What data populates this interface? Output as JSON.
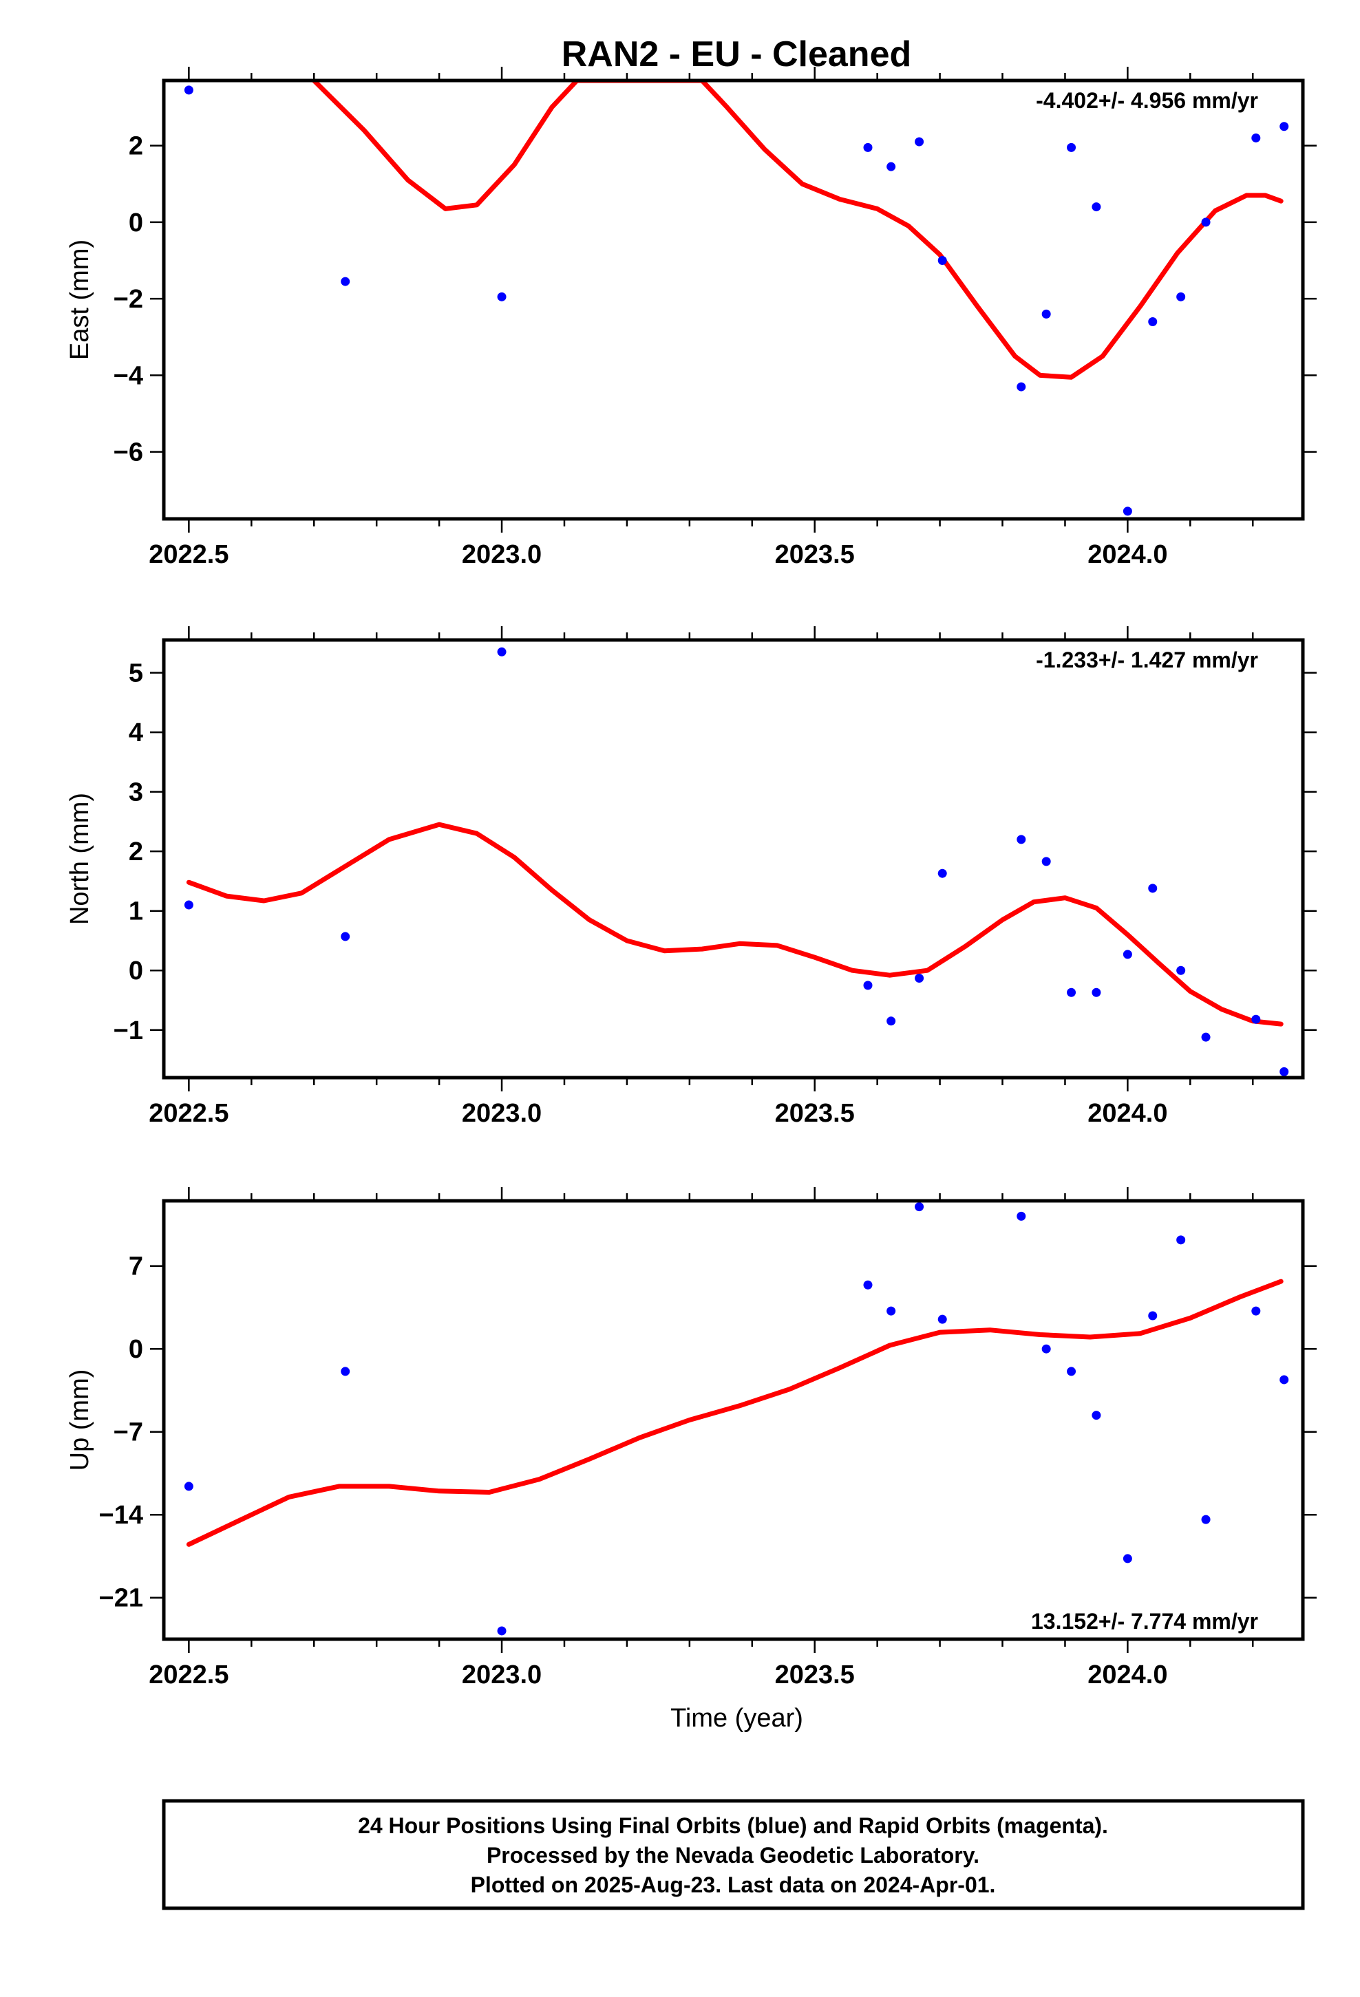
{
  "figure": {
    "title": "RAN2  - EU - Cleaned",
    "footer_lines": [
      "24 Hour Positions Using Final Orbits (blue) and Rapid Orbits (magenta).",
      "Processed by the Nevada Geodetic Laboratory.",
      "Plotted on 2025-Aug-23. Last data on 2024-Apr-01."
    ],
    "colors": {
      "final_orbit_points": "#0000ff",
      "fit_line": "#ff0000",
      "frame": "#000000",
      "background": "#ffffff"
    }
  },
  "chart_data": [
    {
      "type": "scatter",
      "panel": "east",
      "title": "",
      "xlabel": "",
      "ylabel": "East (mm)",
      "rate_label": "-4.402+/- 4.956 mm/yr",
      "xlim": [
        2022.46,
        2024.28
      ],
      "ylim": [
        -7.75,
        3.7
      ],
      "x_ticks": [
        2022.5,
        2023.0,
        2023.5,
        2024.0
      ],
      "x_tick_labels": [
        "2022.5",
        "2023.0",
        "2023.5",
        "2024.0"
      ],
      "y_ticks": [
        2,
        0,
        -2,
        -4,
        -6
      ],
      "y_tick_labels": [
        "2",
        "0",
        "−2",
        "−4",
        "−6"
      ],
      "series": [
        {
          "kind": "points",
          "color": "#0000ff",
          "x": [
            2022.5,
            2022.75,
            2023.0,
            2023.585,
            2023.622,
            2023.667,
            2023.704,
            2023.83,
            2023.87,
            2023.91,
            2023.95,
            2024.0,
            2024.04,
            2024.085,
            2024.125,
            2024.205,
            2024.25
          ],
          "y": [
            3.45,
            -1.55,
            -1.95,
            1.95,
            1.45,
            2.1,
            -1.0,
            -4.3,
            -2.4,
            1.95,
            0.4,
            -7.55,
            -2.6,
            -1.95,
            0.0,
            2.2,
            2.5
          ]
        },
        {
          "kind": "fit",
          "color": "#ff0000",
          "x": [
            2022.7,
            2022.78,
            2022.85,
            2022.91,
            2022.96,
            2023.02,
            2023.08,
            2023.12,
            2023.32,
            2023.36,
            2023.42,
            2023.48,
            2023.54,
            2023.6,
            2023.65,
            2023.7,
            2023.76,
            2023.82,
            2023.86,
            2023.91,
            2023.96,
            2024.02,
            2024.08,
            2024.14,
            2024.19,
            2024.22,
            2024.245
          ],
          "y": [
            3.7,
            2.4,
            1.1,
            0.35,
            0.45,
            1.5,
            3.0,
            3.7,
            3.7,
            3.0,
            1.9,
            1.0,
            0.6,
            0.35,
            -0.1,
            -0.85,
            -2.2,
            -3.5,
            -4.0,
            -4.05,
            -3.5,
            -2.2,
            -0.8,
            0.3,
            0.7,
            0.7,
            0.55
          ]
        }
      ]
    },
    {
      "type": "scatter",
      "panel": "north",
      "title": "",
      "xlabel": "",
      "ylabel": "North (mm)",
      "rate_label": "-1.233+/- 1.427 mm/yr",
      "xlim": [
        2022.46,
        2024.28
      ],
      "ylim": [
        -1.8,
        5.55
      ],
      "x_ticks": [
        2022.5,
        2023.0,
        2023.5,
        2024.0
      ],
      "x_tick_labels": [
        "2022.5",
        "2023.0",
        "2023.5",
        "2024.0"
      ],
      "y_ticks": [
        5,
        4,
        3,
        2,
        1,
        0,
        -1
      ],
      "y_tick_labels": [
        "5",
        "4",
        "3",
        "2",
        "1",
        "0",
        "−1"
      ],
      "series": [
        {
          "kind": "points",
          "color": "#0000ff",
          "x": [
            2022.5,
            2022.75,
            2023.0,
            2023.585,
            2023.622,
            2023.667,
            2023.704,
            2023.83,
            2023.87,
            2023.91,
            2023.95,
            2024.0,
            2024.04,
            2024.085,
            2024.125,
            2024.205,
            2024.25
          ],
          "y": [
            1.1,
            0.57,
            5.35,
            -0.25,
            -0.85,
            -0.13,
            1.63,
            2.2,
            1.83,
            -0.37,
            -0.37,
            0.27,
            1.38,
            0.0,
            -1.12,
            -0.82,
            -1.7
          ]
        },
        {
          "kind": "fit",
          "color": "#ff0000",
          "x": [
            2022.5,
            2022.56,
            2022.62,
            2022.68,
            2022.75,
            2022.82,
            2022.9,
            2022.96,
            2023.02,
            2023.08,
            2023.14,
            2023.2,
            2023.26,
            2023.32,
            2023.38,
            2023.44,
            2023.5,
            2023.56,
            2023.62,
            2023.68,
            2023.74,
            2023.8,
            2023.85,
            2023.9,
            2023.95,
            2024.0,
            2024.05,
            2024.1,
            2024.15,
            2024.2,
            2024.245
          ],
          "y": [
            1.48,
            1.25,
            1.17,
            1.3,
            1.75,
            2.2,
            2.45,
            2.3,
            1.9,
            1.35,
            0.85,
            0.5,
            0.33,
            0.36,
            0.45,
            0.42,
            0.22,
            0.0,
            -0.08,
            0.0,
            0.4,
            0.85,
            1.15,
            1.22,
            1.05,
            0.6,
            0.12,
            -0.35,
            -0.65,
            -0.85,
            -0.9
          ]
        }
      ]
    },
    {
      "type": "scatter",
      "panel": "up",
      "title": "",
      "xlabel": "Time (year)",
      "ylabel": "Up (mm)",
      "rate_label": "13.152+/- 7.774 mm/yr",
      "xlim": [
        2022.46,
        2024.28
      ],
      "ylim": [
        -24.5,
        12.5
      ],
      "x_ticks": [
        2022.5,
        2023.0,
        2023.5,
        2024.0
      ],
      "x_tick_labels": [
        "2022.5",
        "2023.0",
        "2023.5",
        "2024.0"
      ],
      "y_ticks": [
        7,
        0,
        -7,
        -14,
        -21
      ],
      "y_tick_labels": [
        "7",
        "0",
        "−7",
        "−14",
        "−21"
      ],
      "series": [
        {
          "kind": "points",
          "color": "#0000ff",
          "x": [
            2022.5,
            2022.75,
            2023.0,
            2023.585,
            2023.622,
            2023.667,
            2023.704,
            2023.83,
            2023.87,
            2023.91,
            2023.95,
            2024.0,
            2024.04,
            2024.085,
            2024.125,
            2024.205,
            2024.25
          ],
          "y": [
            -11.6,
            -1.9,
            -23.8,
            5.4,
            3.2,
            12.0,
            2.5,
            11.2,
            0.0,
            -1.9,
            -5.6,
            -17.7,
            2.8,
            9.2,
            -14.4,
            3.2,
            -2.6
          ]
        },
        {
          "kind": "fit",
          "color": "#ff0000",
          "x": [
            2022.5,
            2022.58,
            2022.66,
            2022.74,
            2022.82,
            2022.9,
            2022.98,
            2023.06,
            2023.14,
            2023.22,
            2023.3,
            2023.38,
            2023.46,
            2023.54,
            2023.62,
            2023.7,
            2023.78,
            2023.86,
            2023.94,
            2024.02,
            2024.1,
            2024.18,
            2024.245
          ],
          "y": [
            -16.5,
            -14.5,
            -12.5,
            -11.6,
            -11.6,
            -12.0,
            -12.1,
            -11.0,
            -9.3,
            -7.5,
            -6.0,
            -4.8,
            -3.4,
            -1.6,
            0.3,
            1.4,
            1.6,
            1.2,
            1.0,
            1.3,
            2.6,
            4.4,
            5.7
          ]
        }
      ]
    }
  ]
}
